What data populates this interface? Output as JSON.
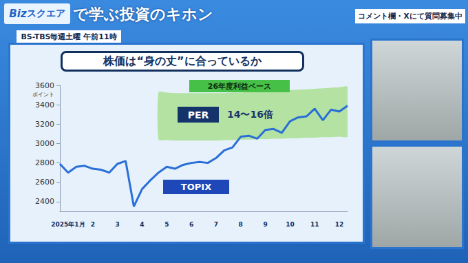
{
  "header": {
    "logo_prefix": "Biz",
    "logo_main": "スクエア",
    "title": "で学ぶ投資のキホン",
    "notice": "コメント欄・Xにて質問募集中",
    "schedule": "BS-TBS毎週土曜 午前11時"
  },
  "chart_data": {
    "type": "line",
    "title": "株価は“身の丈”に合っているか",
    "y_label": "ポイント",
    "categories": [
      null,
      "2025年1月",
      null,
      null,
      "2",
      null,
      null,
      "3",
      null,
      null,
      "4",
      null,
      null,
      "5",
      null,
      null,
      "6",
      null,
      null,
      "7",
      null,
      null,
      "8",
      null,
      null,
      "9",
      null,
      null,
      "10",
      null,
      null,
      "11",
      null,
      null,
      "12",
      null
    ],
    "series": [
      {
        "name": "TOPIX",
        "color": "#2a6fd6",
        "values": [
          2790,
          2700,
          2760,
          2770,
          2740,
          2730,
          2700,
          2790,
          2820,
          2350,
          2530,
          2620,
          2700,
          2760,
          2740,
          2780,
          2800,
          2810,
          2800,
          2850,
          2930,
          2960,
          3070,
          3080,
          3050,
          3140,
          3150,
          3110,
          3230,
          3270,
          3280,
          3360,
          3240,
          3350,
          3330,
          3390
        ]
      }
    ],
    "band": {
      "name": "PER",
      "label": "14〜16倍",
      "note": "26年度利益ベース",
      "color": "#a9df92",
      "lower": [
        null,
        null,
        null,
        null,
        null,
        null,
        null,
        null,
        null,
        null,
        null,
        null,
        3040,
        3035,
        3030,
        3030,
        3030,
        3030,
        3030,
        3030,
        3035,
        3035,
        3040,
        3040,
        3045,
        3045,
        3050,
        3050,
        3055,
        3055,
        3060,
        3060,
        3065,
        3065,
        3070,
        3070
      ],
      "upper": [
        null,
        null,
        null,
        null,
        null,
        null,
        null,
        null,
        null,
        null,
        null,
        null,
        3530,
        3525,
        3520,
        3520,
        3520,
        3520,
        3520,
        3520,
        3520,
        3525,
        3525,
        3530,
        3530,
        3535,
        3540,
        3545,
        3550,
        3555,
        3560,
        3565,
        3570,
        3575,
        3580,
        3585
      ]
    },
    "ylim": [
      2300,
      3600
    ],
    "yticks": [
      2400,
      2600,
      2800,
      3000,
      3200,
      3400,
      3600
    ],
    "grid": false
  }
}
